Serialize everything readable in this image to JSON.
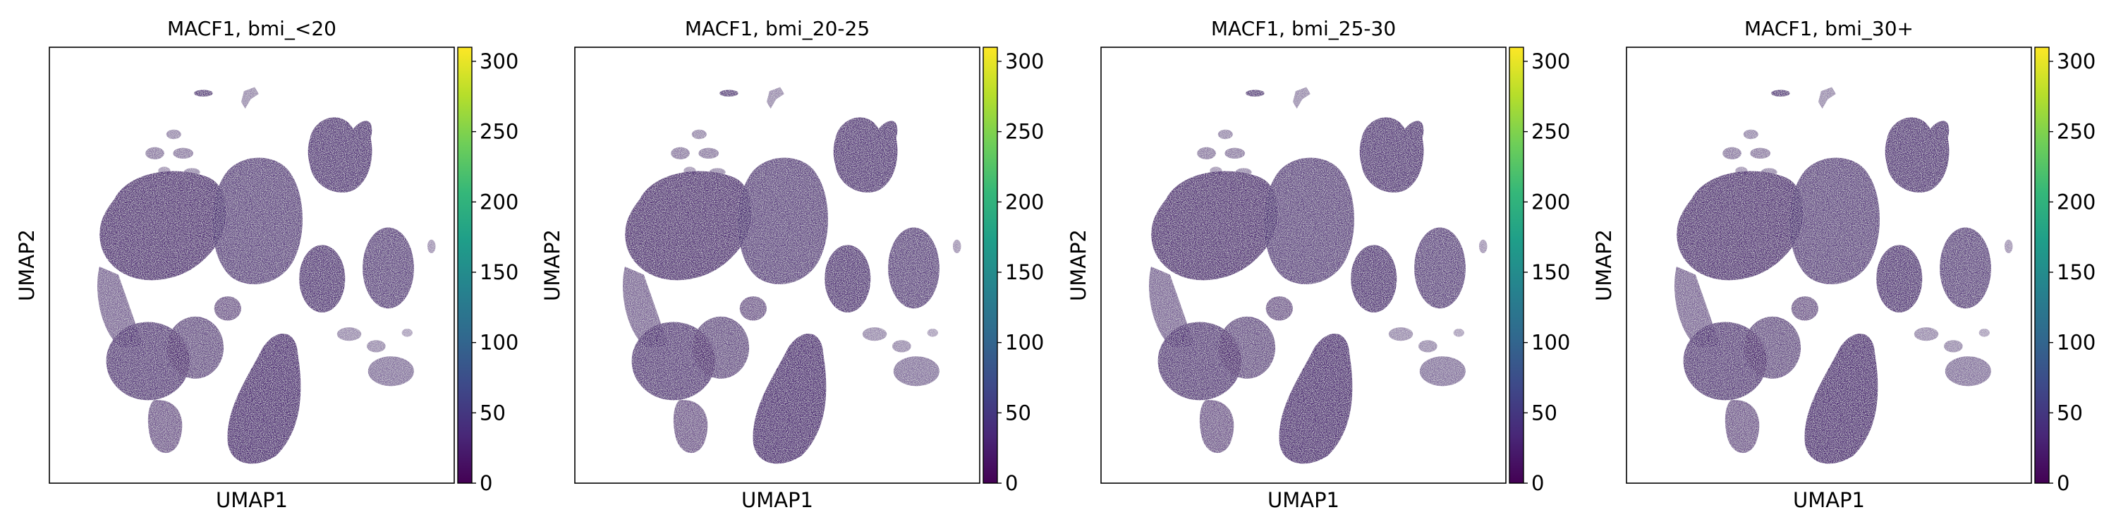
{
  "colors": {
    "cells": "#47246e",
    "cells_light": "#7a5a9c",
    "colormap": [
      "#440154",
      "#482878",
      "#3e4989",
      "#31688e",
      "#26828e",
      "#1f9e89",
      "#35b779",
      "#6ece58",
      "#b5de2b",
      "#fde725"
    ]
  },
  "chart_data": [
    {
      "type": "scatter",
      "title": "MACF1, bmi_<20",
      "xlabel": "UMAP1",
      "ylabel": "UMAP2",
      "colorbar": {
        "min": 0,
        "max": 310,
        "ticks": [
          0,
          50,
          100,
          150,
          200,
          250,
          300
        ]
      }
    },
    {
      "type": "scatter",
      "title": "MACF1, bmi_20-25",
      "xlabel": "UMAP1",
      "ylabel": "UMAP2",
      "colorbar": {
        "min": 0,
        "max": 310,
        "ticks": [
          0,
          50,
          100,
          150,
          200,
          250,
          300
        ]
      }
    },
    {
      "type": "scatter",
      "title": "MACF1, bmi_25-30",
      "xlabel": "UMAP1",
      "ylabel": "UMAP2",
      "colorbar": {
        "min": 0,
        "max": 310,
        "ticks": [
          0,
          50,
          100,
          150,
          200,
          250,
          300
        ]
      }
    },
    {
      "type": "scatter",
      "title": "MACF1, bmi_30+",
      "xlabel": "UMAP1",
      "ylabel": "UMAP2",
      "colorbar": {
        "min": 0,
        "max": 310,
        "ticks": [
          0,
          50,
          100,
          150,
          200,
          250,
          300
        ]
      }
    }
  ]
}
